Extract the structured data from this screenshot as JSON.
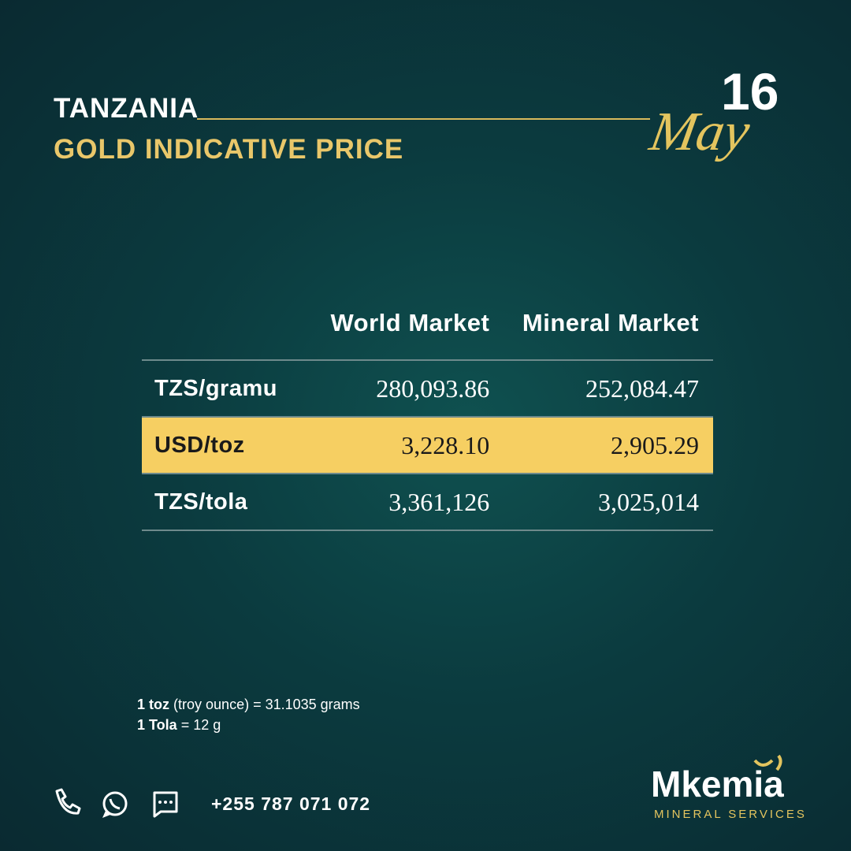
{
  "header": {
    "country": "TANZANIA",
    "title": "GOLD INDICATIVE PRICE"
  },
  "date": {
    "day": "16",
    "month": "May"
  },
  "table": {
    "columns": [
      "World Market",
      "Mineral Market"
    ],
    "rows": [
      [
        "TZS/gramu",
        "280,093.86",
        "252,084.47"
      ],
      [
        "USD/toz",
        "3,228.10",
        "2,905.29"
      ],
      [
        "TZS/tola",
        "3,361,126",
        "3,025,014"
      ]
    ]
  },
  "notes": [
    {
      "term": "1 toz",
      "text": "(troy ounce) = 31.1035 grams"
    },
    {
      "term": "1 Tola",
      "text": "= 12 g"
    }
  ],
  "contact": {
    "phone": "+255 787 071 072"
  },
  "logo": {
    "name": "Mkemia",
    "tagline": "MINERAL SERVICES"
  }
}
